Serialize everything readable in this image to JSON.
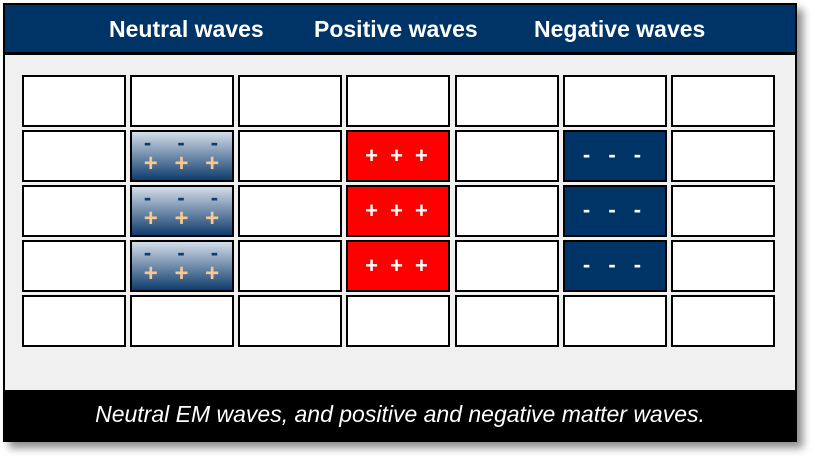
{
  "header": {
    "titles": [
      "Neutral waves",
      "Positive waves",
      "Negative waves"
    ]
  },
  "grid": {
    "columns": 7,
    "rows": [
      [
        "empty",
        "empty",
        "empty",
        "empty",
        "empty",
        "empty",
        "empty"
      ],
      [
        "empty",
        "neutral",
        "empty",
        "positive",
        "empty",
        "negative",
        "empty"
      ],
      [
        "empty",
        "neutral",
        "empty",
        "positive",
        "empty",
        "negative",
        "empty"
      ],
      [
        "empty",
        "neutral",
        "empty",
        "positive",
        "empty",
        "negative",
        "empty"
      ],
      [
        "empty",
        "empty",
        "empty",
        "empty",
        "empty",
        "empty",
        "empty"
      ]
    ],
    "labels": {
      "positive": "+ + +",
      "negative": "- - -",
      "neutral_top": "- - -",
      "neutral_bottom": "+ + +"
    }
  },
  "colors": {
    "header": "#003366",
    "positive": "#ff0000",
    "negative": "#003366",
    "neutral_plus": "#f8c890"
  },
  "caption": "Neutral EM waves, and positive and negative matter waves."
}
